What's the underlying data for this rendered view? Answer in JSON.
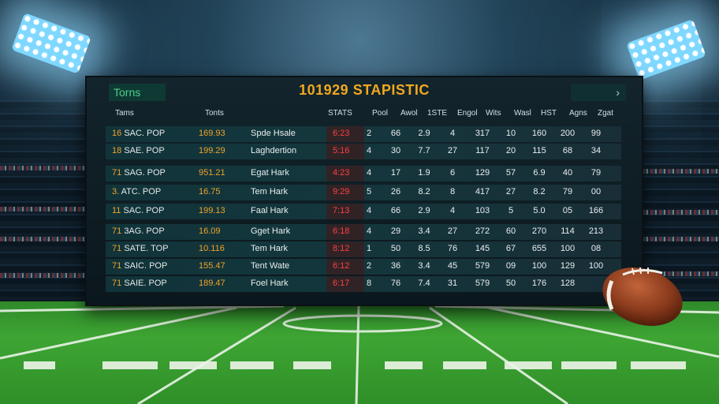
{
  "scoreboard": {
    "title": "101929 STAPISTIC",
    "tab_left": "Torns",
    "tab_right": "›",
    "headers": [
      "Tams",
      "Tonts",
      "STATS",
      "Pool",
      "Awol",
      "1STE",
      "Engol",
      "Wits",
      "Wasl",
      "HST",
      "Agns",
      "Zgat"
    ],
    "rows": [
      {
        "num": "16",
        "team": "SAC. POP",
        "score": "169.93",
        "player": "Spde Hsale",
        "stat": "6:23",
        "values": [
          "2",
          "66",
          "2.9",
          "4",
          "317",
          "10",
          "160",
          "200",
          "99"
        ]
      },
      {
        "num": "18",
        "team": "SAE. POP",
        "score": "199.29",
        "player": "Laghdertion",
        "stat": "5:16",
        "values": [
          "4",
          "30",
          "7.7",
          "27",
          "117",
          "20",
          "115",
          "68",
          "34"
        ]
      },
      {
        "num": "71",
        "team": "SAG. POP",
        "score": "951.21",
        "player": "Egat Hark",
        "stat": "4:23",
        "values": [
          "4",
          "17",
          "1.9",
          "6",
          "129",
          "57",
          "6.9",
          "40",
          "79"
        ]
      },
      {
        "num": "3.",
        "team": "ATC. POP",
        "score": "16.75",
        "player": "Tem Hark",
        "stat": "9:29",
        "values": [
          "5",
          "26",
          "8.2",
          "8",
          "417",
          "27",
          "8.2",
          "79",
          "00"
        ]
      },
      {
        "num": "11",
        "team": "SAC. POP",
        "score": "199.13",
        "player": "Faal Hark",
        "stat": "7:13",
        "values": [
          "4",
          "66",
          "2.9",
          "4",
          "103",
          "5",
          "5.0",
          "05",
          "166"
        ]
      },
      {
        "num": "71",
        "team": "3AG. POP",
        "score": "16.09",
        "player": "Gget Hark",
        "stat": "6:18",
        "values": [
          "4",
          "29",
          "3.4",
          "27",
          "272",
          "60",
          "270",
          "114",
          "213"
        ]
      },
      {
        "num": "71",
        "team": "SATE. TOP",
        "score": "10.116",
        "player": "Tem Hark",
        "stat": "8:12",
        "values": [
          "1",
          "50",
          "8.5",
          "76",
          "145",
          "67",
          "655",
          "100",
          "08"
        ]
      },
      {
        "num": "71",
        "team": "SAIC. POP",
        "score": "155.47",
        "player": "Tent Wate",
        "stat": "6:12",
        "values": [
          "2",
          "36",
          "3.4",
          "45",
          "579",
          "09",
          "100",
          "129",
          "100"
        ]
      },
      {
        "num": "71",
        "team": "SAIE. POP",
        "score": "189.47",
        "player": "Foel Hark",
        "stat": "6:17",
        "values": [
          "8",
          "76",
          "7.4",
          "31",
          "579",
          "50",
          "176",
          "128",
          ""
        ]
      }
    ]
  },
  "colors": {
    "title": "#f0a820",
    "accent_red": "#ff4040",
    "field": "#3ea533",
    "board": "#13242c"
  },
  "icons": {
    "floodlight": "stadium-floodlight-icon",
    "ball": "american-football-icon"
  }
}
